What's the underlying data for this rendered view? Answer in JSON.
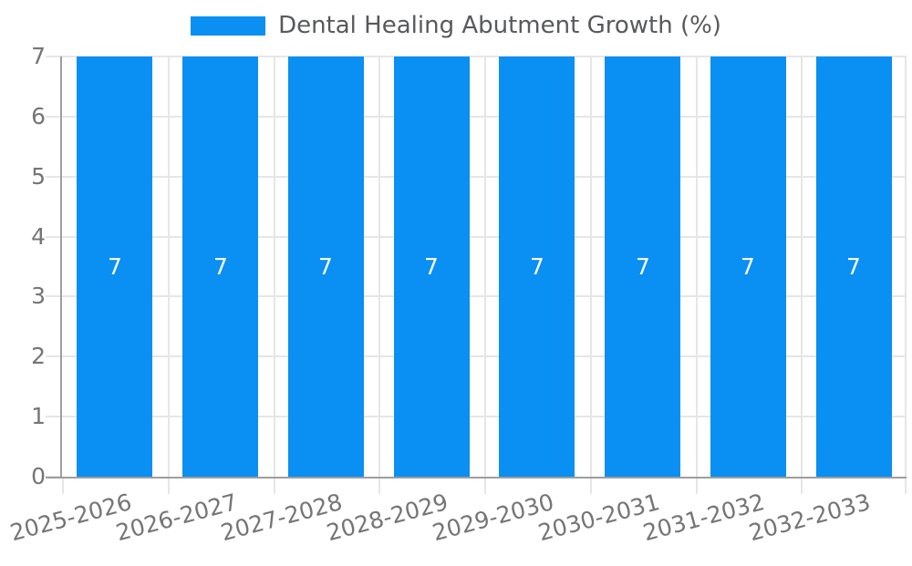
{
  "legend": {
    "label": "Dental Healing Abutment Growth (%)",
    "swatch_color": "#0a8ff2"
  },
  "chart_data": {
    "type": "bar",
    "title": "Dental Healing Abutment Growth (%)",
    "categories": [
      "2025-2026",
      "2026-2027",
      "2027-2028",
      "2028-2029",
      "2029-2030",
      "2030-2031",
      "2031-2032",
      "2032-2033"
    ],
    "values": [
      7,
      7,
      7,
      7,
      7,
      7,
      7,
      7
    ],
    "data_labels": [
      "7",
      "7",
      "7",
      "7",
      "7",
      "7",
      "7",
      "7"
    ],
    "xlabel": "",
    "ylabel": "",
    "ylim": [
      0,
      7
    ],
    "yticks": [
      0,
      1,
      2,
      3,
      4,
      5,
      6,
      7
    ],
    "grid": "horizontal and vertical category boundaries",
    "legend_position": "top-center",
    "bar_color": "#0a8ff2",
    "data_label_color": "#ffffff"
  },
  "colors": {
    "grid": "#e6e6e6",
    "axis": "#9e9e9e",
    "tick_text": "#757575",
    "title_text": "#58595b",
    "background": "#ffffff"
  }
}
